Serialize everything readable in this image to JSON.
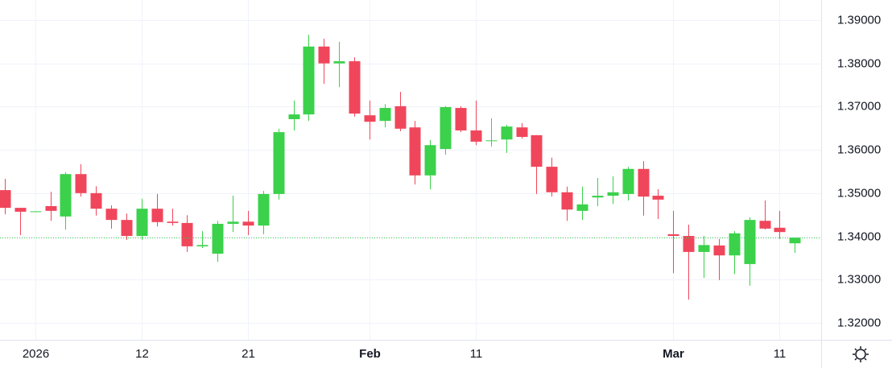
{
  "chart_data": {
    "type": "candlestick",
    "categories": [
      null,
      null,
      "2026",
      null,
      null,
      null,
      null,
      null,
      null,
      "12",
      null,
      null,
      null,
      null,
      null,
      null,
      "21",
      null,
      null,
      null,
      null,
      null,
      null,
      null,
      "Feb",
      null,
      null,
      null,
      null,
      null,
      null,
      "11",
      null,
      null,
      null,
      null,
      null,
      null,
      null,
      null,
      null,
      null,
      null,
      null,
      "Mar",
      null,
      null,
      null,
      null,
      null,
      null,
      "11",
      null
    ],
    "open": [
      1.3507,
      1.3466,
      1.3457,
      1.347,
      1.3446,
      1.3544,
      1.35,
      1.3464,
      1.3438,
      1.3401,
      1.3464,
      1.3434,
      1.3431,
      1.3377,
      1.336,
      1.3429,
      1.3434,
      1.3425,
      1.3498,
      1.3671,
      1.3682,
      1.3839,
      1.38,
      1.3805,
      1.368,
      1.3667,
      1.3701,
      1.3652,
      1.3541,
      1.3602,
      1.3697,
      1.3645,
      1.3621,
      1.3624,
      1.3652,
      1.3634,
      1.3561,
      1.3502,
      1.3459,
      1.349,
      1.3494,
      1.3498,
      1.3556,
      1.3494,
      1.3405,
      1.3401,
      1.3364,
      1.3379,
      1.3356,
      1.3336,
      1.3436,
      1.342,
      1.3384
    ],
    "high": [
      1.3533,
      1.3466,
      1.3458,
      1.3503,
      1.3548,
      1.3567,
      1.3516,
      1.3472,
      1.3453,
      1.3487,
      1.3498,
      1.3464,
      1.3449,
      1.3412,
      1.3436,
      1.3494,
      1.3459,
      1.3505,
      1.3649,
      1.3714,
      1.3866,
      1.3857,
      1.385,
      1.3814,
      1.3714,
      1.3706,
      1.3734,
      1.3667,
      1.3623,
      1.3701,
      1.3701,
      1.3714,
      1.3673,
      1.3658,
      1.3662,
      1.3634,
      1.3582,
      1.3515,
      1.3515,
      1.3535,
      1.3539,
      1.3561,
      1.3574,
      1.3509,
      1.3459,
      1.3427,
      1.3401,
      1.3394,
      1.3412,
      1.3444,
      1.3483,
      1.3459,
      1.3397
    ],
    "low": [
      1.3451,
      1.3403,
      1.3456,
      1.3436,
      1.3416,
      1.3492,
      1.3448,
      1.3418,
      1.3392,
      1.3392,
      1.3423,
      1.3425,
      1.3364,
      1.3373,
      1.3341,
      1.341,
      1.3403,
      1.3405,
      1.3485,
      1.3645,
      1.3667,
      1.3753,
      1.3745,
      1.3677,
      1.3624,
      1.3652,
      1.3643,
      1.352,
      1.3509,
      1.3589,
      1.3641,
      1.3611,
      1.3608,
      1.3593,
      1.3626,
      1.3498,
      1.3492,
      1.3436,
      1.3438,
      1.347,
      1.3475,
      1.3483,
      1.3448,
      1.344,
      1.3315,
      1.3254,
      1.3304,
      1.3299,
      1.3313,
      1.3286,
      1.3416,
      1.3394,
      1.3362
    ],
    "close": [
      1.3466,
      1.3457,
      1.3458,
      1.3459,
      1.3544,
      1.35,
      1.3464,
      1.3438,
      1.3401,
      1.3464,
      1.3433,
      1.3431,
      1.3377,
      1.338,
      1.3429,
      1.3434,
      1.3425,
      1.3498,
      1.3641,
      1.3682,
      1.3839,
      1.38,
      1.3805,
      1.3684,
      1.3665,
      1.3697,
      1.3649,
      1.3541,
      1.3611,
      1.3699,
      1.3645,
      1.3619,
      1.3622,
      1.3654,
      1.363,
      1.3561,
      1.3502,
      1.3462,
      1.3474,
      1.3494,
      1.3502,
      1.3556,
      1.3492,
      1.3485,
      1.3401,
      1.3364,
      1.338,
      1.3356,
      1.3407,
      1.3438,
      1.3418,
      1.341,
      1.3397
    ],
    "up_color": "#3bd14b",
    "down_color": "#f0465b",
    "ylim": [
      1.31608,
      1.39466
    ],
    "yticks": [
      {
        "value": 1.32,
        "label": "1.32000"
      },
      {
        "value": 1.33,
        "label": "1.33000"
      },
      {
        "value": 1.34,
        "label": "1.34000"
      },
      {
        "value": 1.35,
        "label": "1.35000"
      },
      {
        "value": 1.36,
        "label": "1.36000"
      },
      {
        "value": 1.37,
        "label": "1.37000"
      },
      {
        "value": 1.38,
        "label": "1.38000"
      },
      {
        "value": 1.39,
        "label": "1.39000"
      }
    ],
    "grid": true
  }
}
